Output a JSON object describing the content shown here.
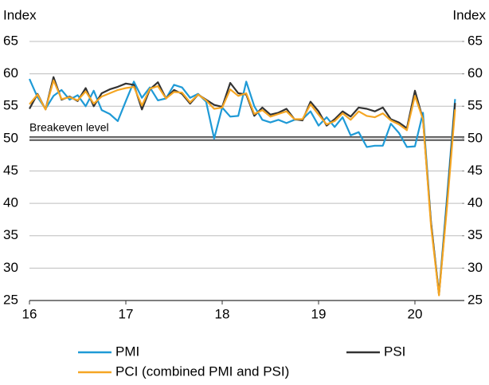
{
  "chart_data": {
    "type": "line",
    "y_label": "Index",
    "y2_label": "Index",
    "categories": [
      "16",
      null,
      null,
      null,
      null,
      null,
      null,
      null,
      null,
      null,
      null,
      null,
      "17",
      null,
      null,
      null,
      null,
      null,
      null,
      null,
      null,
      null,
      null,
      null,
      "18",
      null,
      null,
      null,
      null,
      null,
      null,
      null,
      null,
      null,
      null,
      null,
      "19",
      null,
      null,
      null,
      null,
      null,
      null,
      null,
      null,
      null,
      null,
      null,
      "20",
      null,
      null,
      null,
      null,
      null
    ],
    "series": [
      {
        "name": "PMI",
        "color": "#1f9ad6",
        "values": [
          59.2,
          56.4,
          54.6,
          56.6,
          57.5,
          56.0,
          56.7,
          55.0,
          57.4,
          54.4,
          53.8,
          52.7,
          55.8,
          58.8,
          56.3,
          57.9,
          55.9,
          56.2,
          58.3,
          57.9,
          56.3,
          56.9,
          55.7,
          50.0,
          54.8,
          53.4,
          53.5,
          58.8,
          55.0,
          52.9,
          52.5,
          52.9,
          52.4,
          52.9,
          53.0,
          54.2,
          52.0,
          53.3,
          51.8,
          53.3,
          50.5,
          51.0,
          48.7,
          48.9,
          48.9,
          52.3,
          50.9,
          48.7,
          48.8,
          54.0,
          37.0,
          26.0,
          41.0,
          56.1
        ]
      },
      {
        "name": "PSI",
        "color": "#333333",
        "values": [
          54.6,
          56.9,
          54.5,
          59.5,
          56.0,
          56.5,
          55.8,
          57.8,
          55.0,
          57.0,
          57.6,
          58.0,
          58.5,
          58.3,
          54.5,
          57.6,
          58.7,
          56.2,
          57.5,
          56.9,
          55.4,
          56.8,
          56.0,
          55.2,
          54.9,
          58.6,
          57.0,
          56.8,
          53.5,
          54.8,
          53.7,
          54.0,
          54.6,
          53.0,
          52.8,
          55.7,
          54.2,
          52.0,
          53.0,
          54.2,
          53.4,
          54.8,
          54.6,
          54.2,
          54.8,
          53.0,
          52.5,
          51.6,
          57.4,
          53.0,
          37.0,
          25.9,
          40.0,
          55.5
        ]
      },
      {
        "name": "PCI (combined PMI and PSI)",
        "color": "#f5a623",
        "values": [
          55.3,
          56.8,
          54.5,
          59.0,
          56.1,
          56.4,
          55.9,
          57.3,
          55.4,
          56.5,
          57.0,
          57.5,
          57.8,
          58.0,
          55.1,
          57.7,
          58.1,
          56.2,
          57.2,
          57.1,
          55.6,
          56.8,
          55.9,
          54.6,
          54.8,
          57.6,
          56.6,
          57.0,
          53.8,
          54.4,
          53.4,
          53.8,
          54.2,
          53.0,
          53.0,
          55.3,
          53.7,
          52.2,
          52.7,
          53.9,
          52.9,
          54.2,
          53.5,
          53.3,
          53.9,
          52.8,
          52.2,
          51.3,
          56.6,
          53.0,
          36.5,
          25.8,
          39.5,
          54.5
        ]
      }
    ],
    "reference_line": {
      "value": 50,
      "label": "Breakeven level"
    },
    "ylim": [
      25,
      65
    ],
    "yticks": [
      25,
      30,
      35,
      40,
      45,
      50,
      55,
      60,
      65
    ],
    "y2lim": [
      25,
      65
    ],
    "y2ticks": [
      25,
      30,
      35,
      40,
      45,
      50,
      55,
      60,
      65
    ],
    "grid": true
  }
}
